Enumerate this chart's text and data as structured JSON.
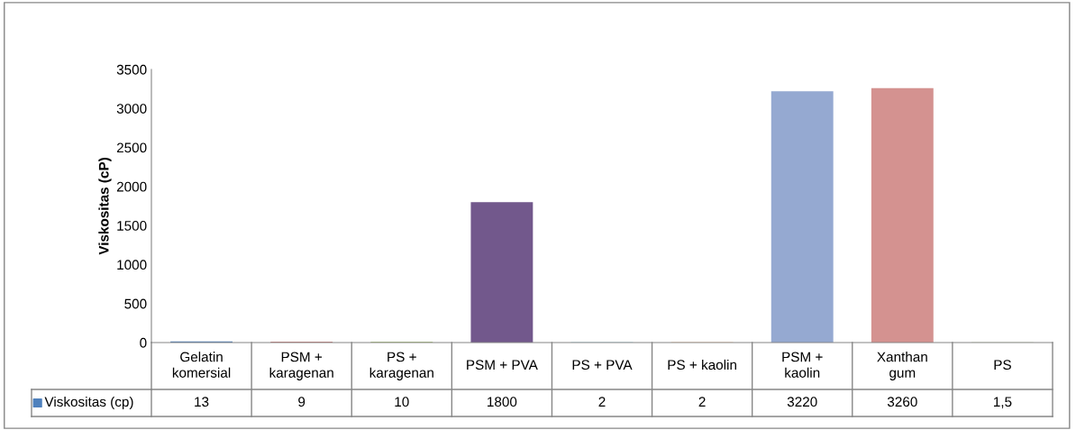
{
  "chart_data": {
    "type": "bar",
    "ylabel": "Viskositas (cP)",
    "categories": [
      "Gelatin\nkomersial",
      "PSM +\nkaragenan",
      "PS +\nkaragenan",
      "PSM + PVA",
      "PS + PVA",
      "PS + kaolin",
      "PSM +\nkaolin",
      "Xanthan\ngum",
      "PS"
    ],
    "series": [
      {
        "name": "Viskositas (cp)",
        "colors": [
          "#4f81bd",
          "#c0504d",
          "#9bbb59",
          "#72588c",
          "#4bacc6",
          "#f79646",
          "#95a9d1",
          "#d49290",
          "#b9cf8f"
        ],
        "values": [
          13,
          9,
          10,
          1800,
          2,
          2,
          3220,
          3260,
          1.5
        ],
        "value_labels": [
          "13",
          "9",
          "10",
          "1800",
          "2",
          "2",
          "3220",
          "3260",
          "1,5"
        ]
      }
    ],
    "ylim": [
      0,
      3500
    ],
    "yticks": [
      0,
      500,
      1000,
      1500,
      2000,
      2500,
      3000,
      3500
    ],
    "grid": false,
    "legend": "bottom left"
  }
}
